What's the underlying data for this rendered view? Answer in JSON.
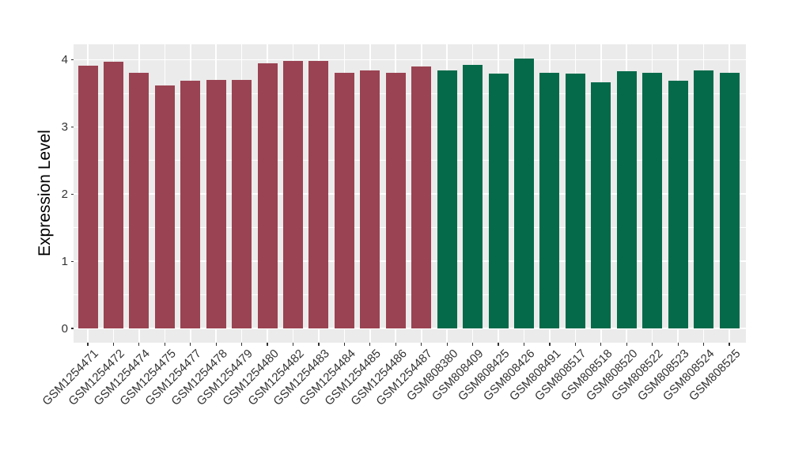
{
  "chart_data": {
    "type": "bar",
    "title": "",
    "xlabel": "",
    "ylabel": "Expression Level",
    "ylim": [
      0,
      4.23
    ],
    "yticks": [
      0,
      1,
      2,
      3,
      4
    ],
    "grid": "white major and minor horizontal gridlines plus vertical gridlines at each category, on gray panel",
    "legend_position": "none",
    "categories": [
      "GSM1254471",
      "GSM1254472",
      "GSM1254474",
      "GSM1254475",
      "GSM1254477",
      "GSM1254478",
      "GSM1254479",
      "GSM1254480",
      "GSM1254482",
      "GSM1254483",
      "GSM1254484",
      "GSM1254485",
      "GSM1254486",
      "GSM1254487",
      "GSM808380",
      "GSM808409",
      "GSM808425",
      "GSM808426",
      "GSM808491",
      "GSM808517",
      "GSM808518",
      "GSM808520",
      "GSM808522",
      "GSM808523",
      "GSM808524",
      "GSM808525"
    ],
    "values": [
      3.91,
      3.97,
      3.8,
      3.62,
      3.69,
      3.7,
      3.7,
      3.95,
      3.98,
      3.98,
      3.8,
      3.84,
      3.81,
      3.9,
      3.84,
      3.92,
      3.79,
      4.02,
      3.8,
      3.79,
      3.67,
      3.83,
      3.8,
      3.69,
      3.84,
      3.8
    ],
    "bar_groups": [
      "maroon",
      "maroon",
      "maroon",
      "maroon",
      "maroon",
      "maroon",
      "maroon",
      "maroon",
      "maroon",
      "maroon",
      "maroon",
      "maroon",
      "maroon",
      "maroon",
      "green",
      "green",
      "green",
      "green",
      "green",
      "green",
      "green",
      "green",
      "green",
      "green",
      "green",
      "green"
    ],
    "group_colors": {
      "maroon": "#9A4352",
      "green": "#046A4A"
    }
  },
  "theme": {
    "panel_bg": "#EBEBEB",
    "grid_color": "#FFFFFF",
    "axis_text_color": "#333333",
    "axis_title_color": "#000000",
    "tick_mark_color": "#333333"
  }
}
